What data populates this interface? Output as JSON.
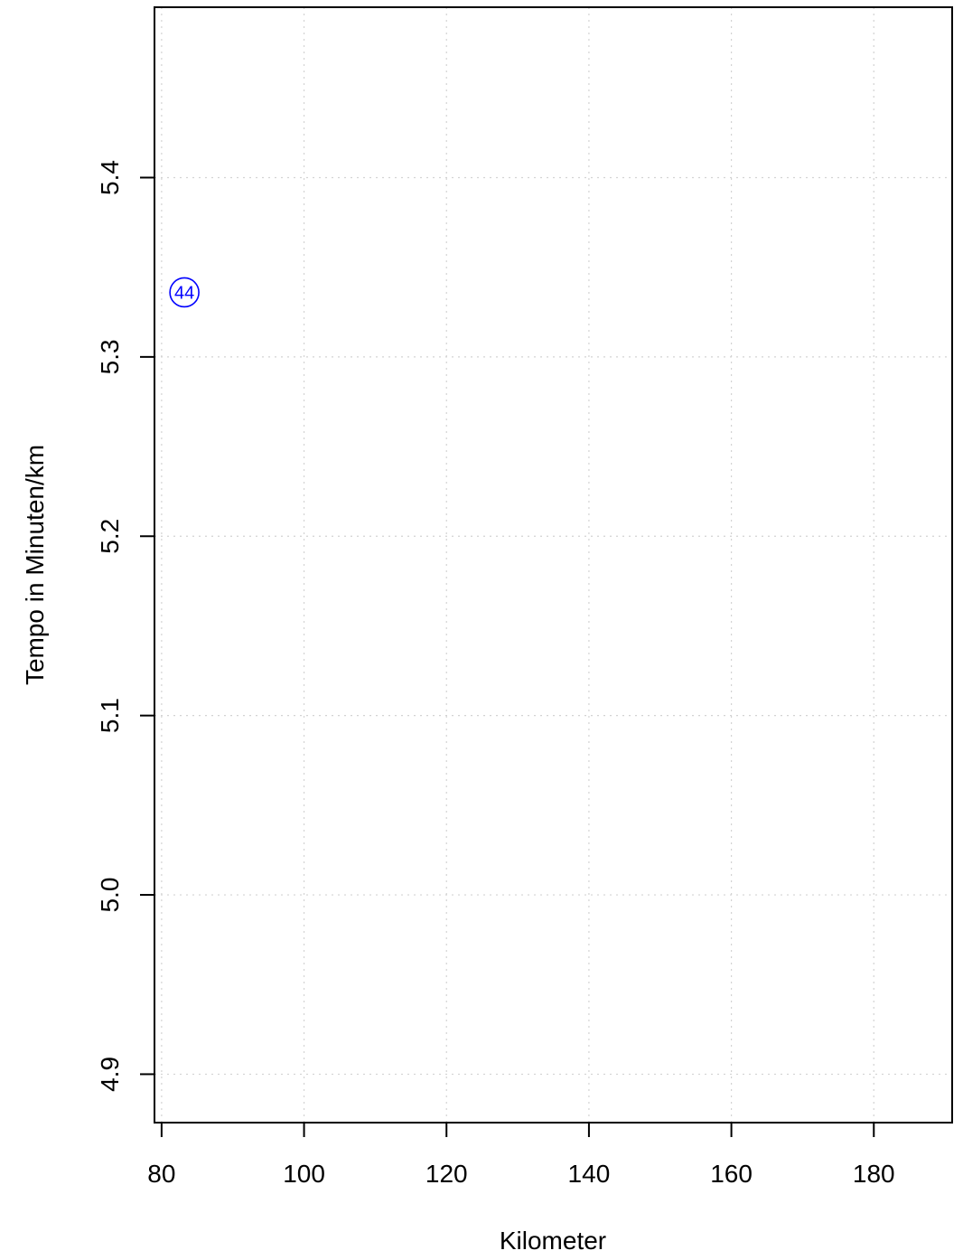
{
  "chart_data": {
    "type": "scatter",
    "title": "",
    "xlabel": "Kilometer",
    "ylabel": "Tempo in Minuten/km",
    "xlim": [
      79,
      191
    ],
    "ylim": [
      4.873,
      5.495
    ],
    "x_ticks": [
      80,
      100,
      120,
      140,
      160,
      180
    ],
    "y_ticks": [
      4.9,
      5.0,
      5.1,
      5.2,
      5.3,
      5.4
    ],
    "x_tick_labels": [
      "80",
      "100",
      "120",
      "140",
      "160",
      "180"
    ],
    "y_tick_labels": [
      "4.9",
      "5.0",
      "5.1",
      "5.2",
      "5.3",
      "5.4"
    ],
    "grid": true,
    "points": [
      {
        "x": 83.2,
        "y": 5.336,
        "label": "44"
      }
    ],
    "colors": {
      "point": "#0000ff",
      "grid": "#d3d3d3",
      "axis": "#000000"
    }
  }
}
